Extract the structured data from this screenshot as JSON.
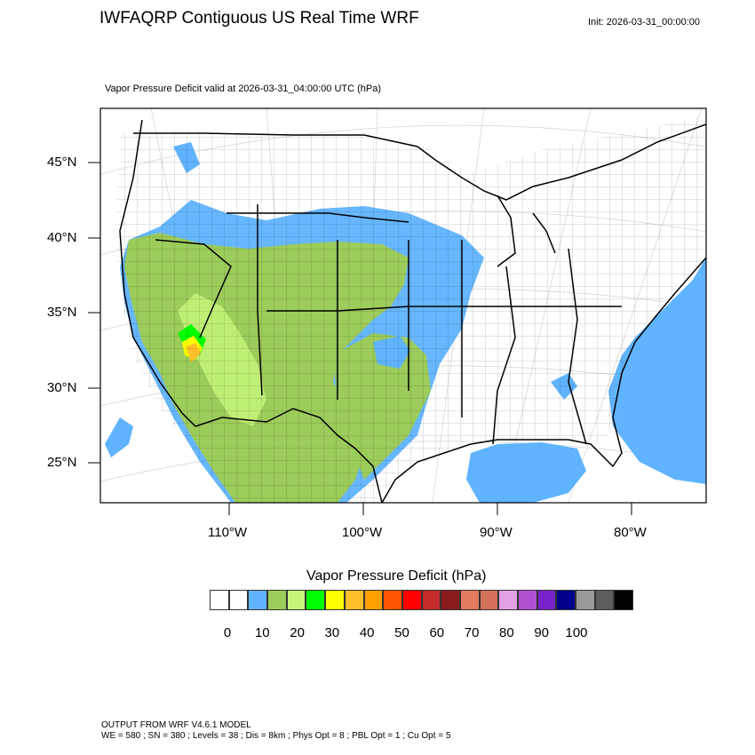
{
  "header": {
    "title": "IWFAQRP Contiguous US Real Time WRF",
    "init": "Init: 2026-03-31_00:00:00"
  },
  "plot": {
    "subtitle": "Vapor Pressure Deficit valid at 2026-03-31_04:00:00 UTC   (hPa)",
    "lat_labels": [
      "45°N",
      "40°N",
      "35°N",
      "30°N",
      "25°N"
    ],
    "lon_labels": [
      "110°W",
      "100°W",
      "90°W",
      "80°W"
    ],
    "colors": {
      "water_shading": "#5fb3ff",
      "frame": "#000000"
    }
  },
  "colorbar": {
    "title": "Vapor Pressure Deficit  (hPa)",
    "ticks": [
      "0",
      "10",
      "20",
      "30",
      "40",
      "50",
      "60",
      "70",
      "80",
      "90",
      "100"
    ],
    "colors": [
      "#ffffff",
      "#ffffff",
      "#5fb3ff",
      "#9ccc5a",
      "#c4f57a",
      "#00ff00",
      "#ffff00",
      "#ffbf2a",
      "#ff9f00",
      "#ff5500",
      "#ff0000",
      "#c62b2b",
      "#8b1a1a",
      "#e47a5e",
      "#d3715a",
      "#e3a1e3",
      "#b050d0",
      "#7a22cc",
      "#00008b",
      "#999999",
      "#5e5e5e",
      "#000000"
    ]
  },
  "footer": {
    "line1": "OUTPUT FROM WRF V4.6.1 MODEL",
    "line2": "WE = 580 ; SN = 380 ; Levels = 38 ; Dis = 8km ; Phys Opt = 8 ; PBL Opt = 1 ; Cu Opt = 5"
  }
}
